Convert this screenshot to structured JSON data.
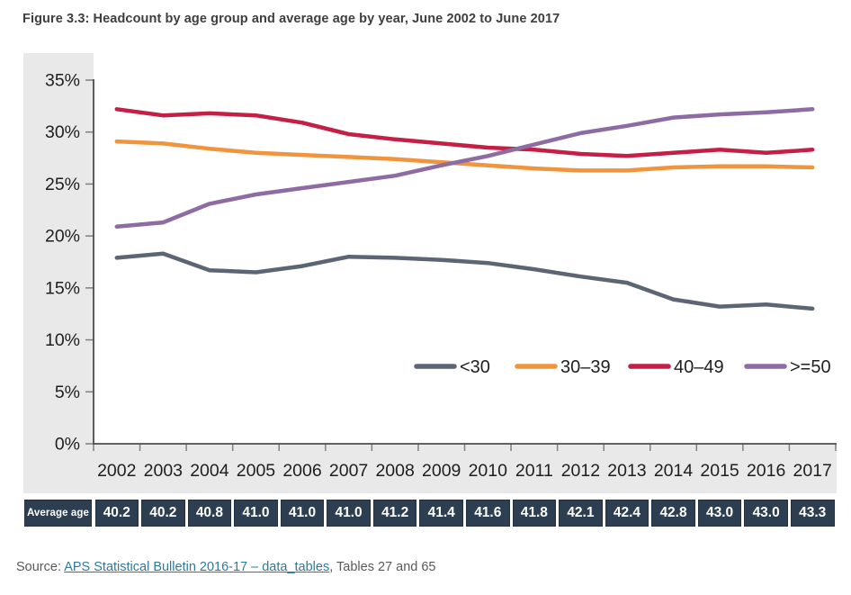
{
  "figure_title": "Figure 3.3: Headcount by age group and average age by year, June 2002 to June 2017",
  "source": {
    "prefix": "Source: ",
    "link_text": "APS Statistical Bulletin 2016-17 – data_tables",
    "suffix": ", Tables 27 and 65"
  },
  "average_age_row": {
    "label": "Average age",
    "values": [
      "40.2",
      "40.2",
      "40.8",
      "41.0",
      "41.0",
      "41.0",
      "41.2",
      "41.4",
      "41.6",
      "41.8",
      "42.1",
      "42.4",
      "42.8",
      "43.0",
      "43.0",
      "43.3"
    ]
  },
  "chart_data": {
    "type": "line",
    "title": "",
    "xlabel": "",
    "ylabel": "",
    "x_tick_labels": [
      "2002",
      "2003",
      "2004",
      "2005",
      "2006",
      "2007",
      "2008",
      "2009",
      "2010",
      "2011",
      "2012",
      "2013",
      "2014",
      "2015",
      "2016",
      "2017"
    ],
    "y_tick_labels": [
      "0%",
      "5%",
      "10%",
      "15%",
      "20%",
      "25%",
      "30%",
      "35%"
    ],
    "ylim": [
      0,
      35
    ],
    "ytick_step": 5,
    "grid": false,
    "legend_position": "inside lower right, horizontal",
    "series": [
      {
        "name": "<30",
        "color": "#5b6574",
        "values": [
          17.9,
          18.3,
          16.7,
          16.5,
          17.1,
          18.0,
          17.9,
          17.7,
          17.4,
          16.8,
          16.1,
          15.5,
          13.9,
          13.2,
          13.4,
          13.0
        ]
      },
      {
        "name": "30–39",
        "color": "#f0943d",
        "values": [
          29.1,
          28.9,
          28.4,
          28.0,
          27.8,
          27.6,
          27.4,
          27.1,
          26.8,
          26.5,
          26.3,
          26.3,
          26.6,
          26.7,
          26.7,
          26.6
        ]
      },
      {
        "name": "40–49",
        "color": "#c41f45",
        "values": [
          32.2,
          31.6,
          31.8,
          31.6,
          30.9,
          29.8,
          29.3,
          28.9,
          28.5,
          28.3,
          27.9,
          27.7,
          28.0,
          28.3,
          28.0,
          28.3
        ]
      },
      {
        "name": ">=50",
        "color": "#8d6ba3",
        "values": [
          20.9,
          21.3,
          23.1,
          24.0,
          24.6,
          25.2,
          25.8,
          26.8,
          27.7,
          28.8,
          29.9,
          30.6,
          31.4,
          31.7,
          31.9,
          32.2
        ]
      }
    ]
  },
  "colors": {
    "panel_background": "#e9e9e9",
    "plot_background": "#ffffff",
    "axis": "#4d4d4d",
    "tick": "#808080",
    "tick_label": "#1f1f1f",
    "table_cell": "#2d3e50",
    "table_text": "#ffffff",
    "link": "#31799c"
  }
}
